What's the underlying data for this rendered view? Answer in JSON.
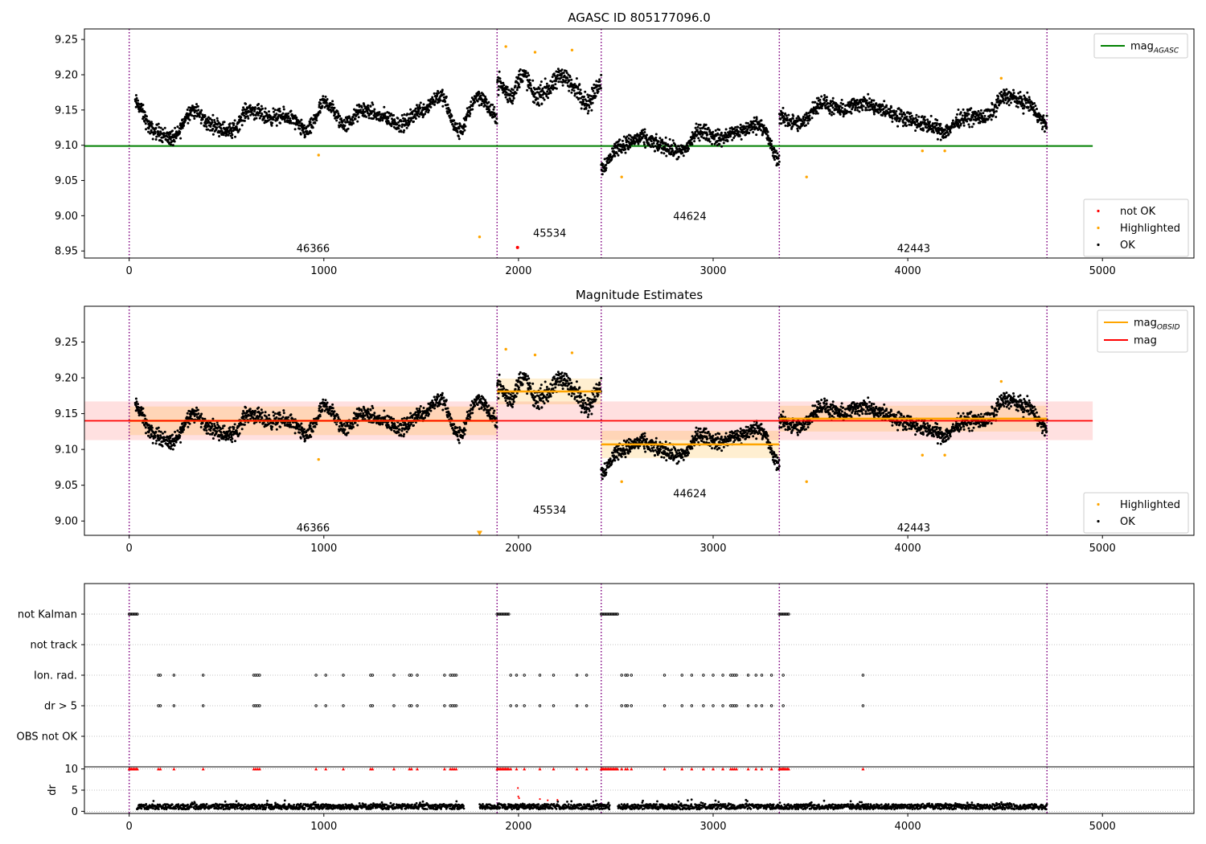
{
  "chart_data": [
    {
      "panel": "top",
      "type": "scatter",
      "title": "AGASC ID 805177096.0",
      "xlim": [
        -230,
        5470
      ],
      "ylim": [
        8.94,
        9.265
      ],
      "xticks": [
        0,
        1000,
        2000,
        3000,
        4000,
        5000
      ],
      "xtick_labels": [
        "0",
        "1000",
        "2000",
        "3000",
        "4000",
        "5000"
      ],
      "yticks": [
        8.95,
        9.0,
        9.05,
        9.1,
        9.15,
        9.2,
        9.25
      ],
      "ytick_labels": [
        "8.95",
        "9.00",
        "9.05",
        "9.10",
        "9.15",
        "9.20",
        "9.25"
      ],
      "vlines": [
        0,
        1890,
        2425,
        3340,
        4715
      ],
      "hlines": [
        {
          "name": "mag_AGASC",
          "y": 9.099,
          "x": [
            -230,
            4950
          ],
          "color": "#008000"
        }
      ],
      "legend_top": [
        {
          "label": "mag",
          "sub": "AGASC",
          "color": "#008000",
          "kind": "line"
        }
      ],
      "legend_bottom": [
        {
          "label": "not OK",
          "color": "#ff0000",
          "kind": "dot"
        },
        {
          "label": "Highlighted",
          "color": "#ffa500",
          "kind": "dot"
        },
        {
          "label": "OK",
          "color": "#000000",
          "kind": "dot"
        }
      ],
      "obsids": [
        {
          "label": "46366",
          "x": 945,
          "y": 8.953
        },
        {
          "label": "45534",
          "x": 2160,
          "y": 8.975
        },
        {
          "label": "44624",
          "x": 2880,
          "y": 8.999
        },
        {
          "label": "42443",
          "x": 4030,
          "y": 8.953
        }
      ],
      "highlighted": [
        [
          973,
          9.086
        ],
        [
          1800,
          8.97
        ],
        [
          1935,
          9.24
        ],
        [
          2085,
          9.232
        ],
        [
          2275,
          9.235
        ],
        [
          2530,
          9.055
        ],
        [
          3480,
          9.055
        ],
        [
          4075,
          9.092
        ],
        [
          4190,
          9.092
        ],
        [
          4480,
          9.195
        ]
      ],
      "not_ok": [
        [
          1995,
          8.955
        ]
      ],
      "ok_segments": [
        {
          "x": [
            30,
            1890
          ],
          "levels": [
            9.16,
            9.12,
            9.11,
            9.15,
            9.13,
            9.12,
            9.15,
            9.14,
            9.14,
            9.12,
            9.16,
            9.13,
            9.15,
            9.14,
            9.13,
            9.15,
            9.17,
            9.12,
            9.17,
            9.14
          ],
          "noise": 0.008
        },
        {
          "x": [
            1890,
            2425
          ],
          "levels": [
            9.19,
            9.17,
            9.2,
            9.17,
            9.18,
            9.2,
            9.18,
            9.16,
            9.19
          ],
          "noise": 0.01
        },
        {
          "x": [
            2425,
            3340
          ],
          "levels": [
            9.07,
            9.1,
            9.11,
            9.1,
            9.09,
            9.12,
            9.11,
            9.12,
            9.13,
            9.08
          ],
          "noise": 0.008
        },
        {
          "x": [
            3340,
            4715
          ],
          "levels": [
            9.14,
            9.13,
            9.16,
            9.15,
            9.16,
            9.15,
            9.14,
            9.13,
            9.12,
            9.14,
            9.14,
            9.17,
            9.16,
            9.13
          ],
          "noise": 0.008
        }
      ]
    },
    {
      "panel": "middle",
      "type": "scatter",
      "title": "Magnitude Estimates",
      "xlim": [
        -230,
        5470
      ],
      "ylim": [
        8.98,
        9.3
      ],
      "xticks": [
        0,
        1000,
        2000,
        3000,
        4000,
        5000
      ],
      "xtick_labels": [
        "0",
        "1000",
        "2000",
        "3000",
        "4000",
        "5000"
      ],
      "yticks": [
        9.0,
        9.05,
        9.1,
        9.15,
        9.2,
        9.25
      ],
      "ytick_labels": [
        "9.00",
        "9.05",
        "9.10",
        "9.15",
        "9.20",
        "9.25"
      ],
      "vlines": [
        0,
        1890,
        2425,
        3340,
        4715
      ],
      "mag": {
        "y": 9.14,
        "band": [
          9.113,
          9.167
        ],
        "x": [
          -230,
          4950
        ],
        "color": "#ff0000"
      },
      "mag_obsid": [
        {
          "x": [
            0,
            1890
          ],
          "y": 9.14,
          "band": [
            9.12,
            9.16
          ]
        },
        {
          "x": [
            1890,
            2425
          ],
          "y": 9.181,
          "band": [
            9.163,
            9.199
          ]
        },
        {
          "x": [
            2425,
            3340
          ],
          "y": 9.107,
          "band": [
            9.088,
            9.126
          ]
        },
        {
          "x": [
            3340,
            4715
          ],
          "y": 9.143,
          "band": [
            9.125,
            9.161
          ]
        }
      ],
      "legend_top": [
        {
          "label": "mag",
          "sub": "OBSID",
          "color": "#ffa500",
          "kind": "line"
        },
        {
          "label": "mag",
          "sub": "",
          "color": "#ff0000",
          "kind": "line"
        }
      ],
      "legend_bottom": [
        {
          "label": "Highlighted",
          "color": "#ffa500",
          "kind": "dot"
        },
        {
          "label": "OK",
          "color": "#000000",
          "kind": "dot"
        }
      ],
      "obsids": [
        {
          "label": "46366",
          "x": 945,
          "y": 8.99
        },
        {
          "label": "45534",
          "x": 2160,
          "y": 9.015
        },
        {
          "label": "44624",
          "x": 2880,
          "y": 9.038
        },
        {
          "label": "42443",
          "x": 4030,
          "y": 8.99
        }
      ],
      "highlighted": [
        [
          973,
          9.086
        ],
        [
          1935,
          9.24
        ],
        [
          2085,
          9.232
        ],
        [
          2275,
          9.235
        ],
        [
          2530,
          9.055
        ],
        [
          3480,
          9.055
        ],
        [
          4075,
          9.092
        ],
        [
          4190,
          9.092
        ],
        [
          4480,
          9.195
        ]
      ],
      "off_scale_marker": [
        1800,
        8.983
      ]
    },
    {
      "panel": "flags",
      "type": "scatter",
      "categories": [
        "not Kalman",
        "not track",
        "Ion. rad.",
        "dr > 5",
        "OBS not OK"
      ],
      "xlim": [
        -230,
        5470
      ],
      "vlines": [
        0,
        1890,
        2425,
        3340,
        4715
      ],
      "not_kalman": [
        [
          0,
          45
        ],
        [
          1890,
          1950
        ],
        [
          2425,
          2510
        ],
        [
          3340,
          3390
        ]
      ],
      "events": [
        150,
        160,
        230,
        380,
        640,
        650,
        660,
        670,
        960,
        1010,
        1100,
        1240,
        1250,
        1360,
        1440,
        1450,
        1480,
        1620,
        1650,
        1660,
        1670,
        1680,
        1960,
        1990,
        2030,
        2110,
        2180,
        2300,
        2350,
        2530,
        2550,
        2560,
        2580,
        2750,
        2840,
        2890,
        2950,
        3000,
        3050,
        3090,
        3100,
        3110,
        3120,
        3180,
        3220,
        3250,
        3300,
        3360,
        3770
      ]
    },
    {
      "panel": "dr",
      "type": "scatter",
      "ylabel": "dr",
      "xlim": [
        -230,
        5470
      ],
      "ylim": [
        -0.5,
        10.5
      ],
      "yticks": [
        0,
        5,
        10
      ],
      "ytick_labels": [
        "0",
        "5",
        "10"
      ],
      "xticks": [
        0,
        1000,
        2000,
        3000,
        4000,
        5000
      ],
      "xtick_labels": [
        "0",
        "1000",
        "2000",
        "3000",
        "4000",
        "5000"
      ],
      "vlines": [
        0,
        1890,
        2425,
        3340,
        4715
      ],
      "dr_ok_level": 1.1,
      "dr_ok_range": [
        40,
        4715
      ],
      "clipped_markers_at": 10,
      "extra_points": [
        [
          1997,
          5.5
        ],
        [
          1999,
          3.5
        ],
        [
          2003,
          3.1
        ],
        [
          2110,
          2.9
        ],
        [
          2150,
          2.6
        ],
        [
          2200,
          2.7
        ]
      ]
    }
  ]
}
